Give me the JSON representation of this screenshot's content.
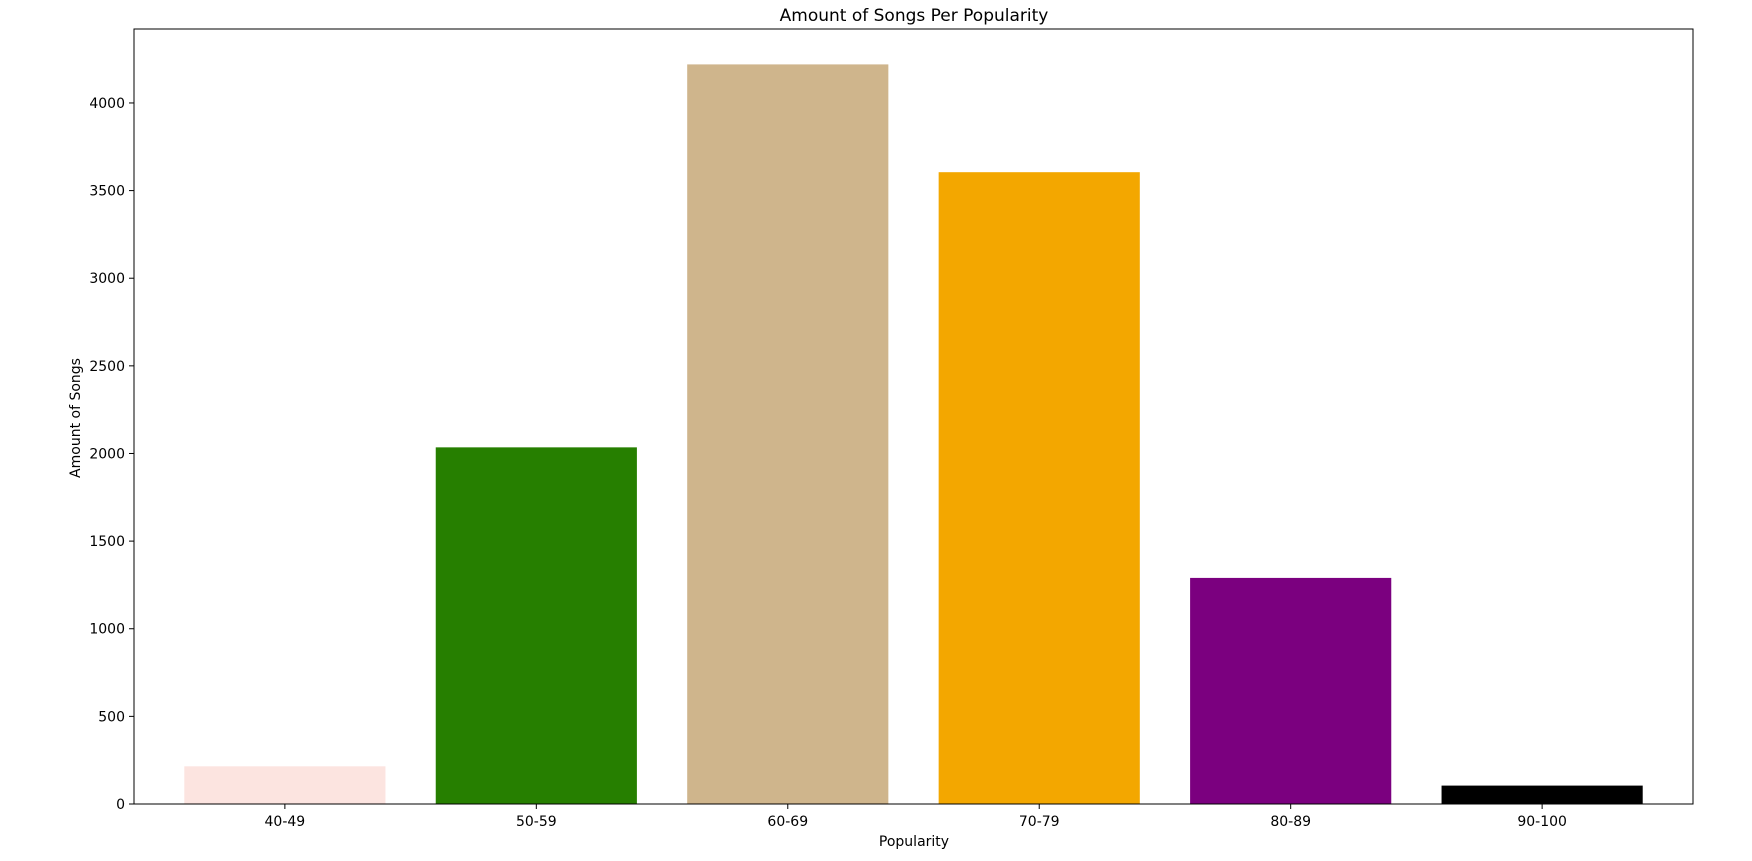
{
  "chart_data": {
    "type": "bar",
    "title": "Amount of Songs Per Popularity",
    "xlabel": "Popularity",
    "ylabel": "Amount of Songs",
    "categories": [
      "40-49",
      "50-59",
      "60-69",
      "70-79",
      "80-89",
      "90-100"
    ],
    "values": [
      215,
      2035,
      4220,
      3605,
      1290,
      105
    ],
    "colors": [
      "#fce4e0",
      "#267f00",
      "#cfb58c",
      "#f3a700",
      "#7b007f",
      "#000000"
    ],
    "ylim": [
      0,
      4422
    ],
    "yticks": [
      0,
      500,
      1000,
      1500,
      2000,
      2500,
      3000,
      3500,
      4000
    ],
    "grid": false,
    "legend": "none"
  }
}
